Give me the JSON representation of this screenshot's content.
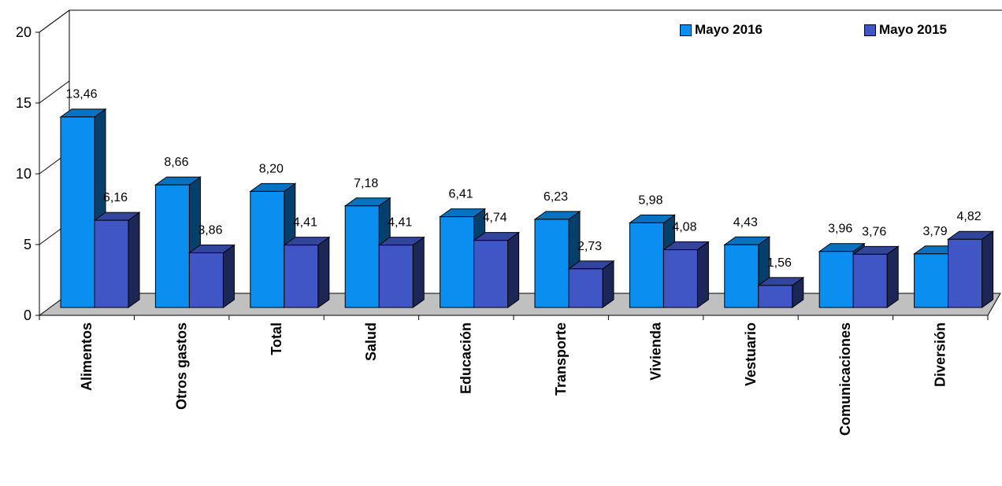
{
  "chart_data": {
    "type": "bar",
    "categories": [
      "Alimentos",
      "Otros gastos",
      "Total",
      "Salud",
      "Educación",
      "Transporte",
      "Vivienda",
      "Vestuario",
      "Comunicaciones",
      "Diversión"
    ],
    "series": [
      {
        "name": "Mayo 2016",
        "values": [
          13.46,
          8.66,
          8.2,
          7.18,
          6.41,
          6.23,
          5.98,
          4.43,
          3.96,
          3.79
        ],
        "labels": [
          "13,46",
          "8,66",
          "8,20",
          "7,18",
          "6,41",
          "6,23",
          "5,98",
          "4,43",
          "3,96",
          "3,79"
        ],
        "color": "#0a8ef0"
      },
      {
        "name": "Mayo 2015",
        "values": [
          6.16,
          3.86,
          4.41,
          4.41,
          4.74,
          2.73,
          4.08,
          1.56,
          3.76,
          4.82
        ],
        "labels": [
          "6,16",
          "3,86",
          "4,41",
          "4,41",
          "4,74",
          "2,73",
          "4,08",
          "1,56",
          "3,76",
          "4,82"
        ],
        "color": "#3f56c4"
      }
    ],
    "yticks": [
      "0",
      "5",
      "10",
      "15",
      "20"
    ],
    "ylim": [
      0,
      20
    ],
    "title": "",
    "xlabel": "",
    "ylabel": "",
    "legend_position": "top-right",
    "three_d": true
  }
}
